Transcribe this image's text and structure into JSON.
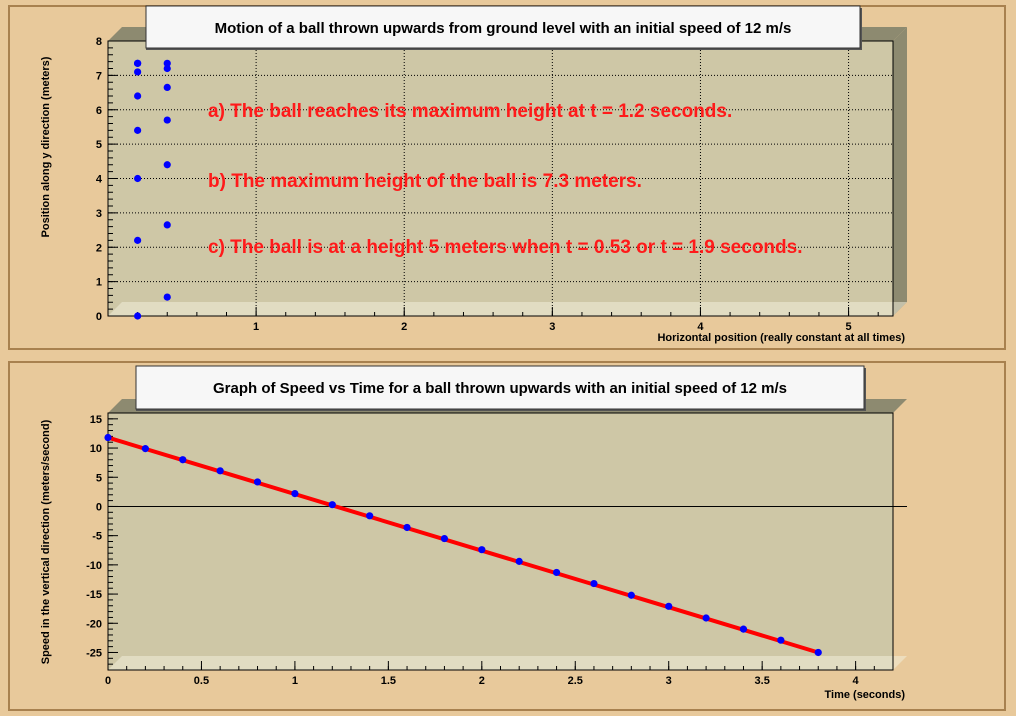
{
  "colors": {
    "background": "#e8c99b",
    "plot_bg": "#cec7a6",
    "marker": "#0000ff",
    "fit_line": "#ff0000",
    "annotation": "#ff1a1a"
  },
  "chart_data": [
    {
      "type": "scatter",
      "title": "Motion of a ball thrown upwards from ground level with an initial speed of 12 m/s",
      "xlabel": "Horizontal position (really constant at all times)",
      "ylabel": "Position along y direction (meters)",
      "xlim": [
        0,
        5.3
      ],
      "ylim": [
        0,
        8
      ],
      "xticks": [
        "1",
        "2",
        "3",
        "4",
        "5"
      ],
      "yticks": [
        "0",
        "1",
        "2",
        "3",
        "4",
        "5",
        "6",
        "7",
        "8"
      ],
      "grid": true,
      "series": [
        {
          "x": [
            0.2,
            0.2,
            0.2,
            0.2,
            0.2,
            0.2,
            0.2,
            0.2
          ],
          "y": [
            0.0,
            2.2,
            4.0,
            5.4,
            6.4,
            7.1,
            7.35,
            7.35
          ]
        },
        {
          "x": [
            0.4,
            0.4,
            0.4,
            0.4,
            0.4,
            0.4,
            0.4
          ],
          "y": [
            0.55,
            2.65,
            4.4,
            5.7,
            6.65,
            7.2,
            7.35
          ]
        }
      ],
      "annotations": [
        "a) The ball reaches its maximum height at t = 1.2 seconds.",
        "b) The maximum height of the ball is 7.3 meters.",
        "c) The ball is at a height 5 meters when t = 0.53 or t = 1.9 seconds."
      ]
    },
    {
      "type": "line",
      "title": "Graph of Speed vs Time for a ball thrown upwards with an initial speed of 12 m/s",
      "xlabel": "Time (seconds)",
      "ylabel": "Speed in the vertical direction (meters/second)",
      "xlim": [
        0,
        4.2
      ],
      "ylim": [
        -28,
        16
      ],
      "xticks": [
        "0",
        "0.5",
        "1",
        "1.5",
        "2",
        "2.5",
        "3",
        "3.5",
        "4"
      ],
      "yticks": [
        "15",
        "10",
        "5",
        "0",
        "-5",
        "-10",
        "-15",
        "-20",
        "-25"
      ],
      "grid": false,
      "series": [
        {
          "x": [
            0,
            0.2,
            0.4,
            0.6,
            0.8,
            1.0,
            1.2,
            1.4,
            1.6,
            1.8,
            2.0,
            2.2,
            2.4,
            2.6,
            2.8,
            3.0,
            3.2,
            3.4,
            3.6,
            3.8
          ],
          "y": [
            11.8,
            9.9,
            8.0,
            6.1,
            4.2,
            2.2,
            0.3,
            -1.6,
            -3.6,
            -5.5,
            -7.4,
            -9.4,
            -11.3,
            -13.2,
            -15.2,
            -17.1,
            -19.1,
            -21.0,
            -22.9,
            -25.0
          ]
        }
      ],
      "fit_line": {
        "x": [
          0,
          3.8
        ],
        "y": [
          11.8,
          -25.0
        ]
      }
    }
  ]
}
